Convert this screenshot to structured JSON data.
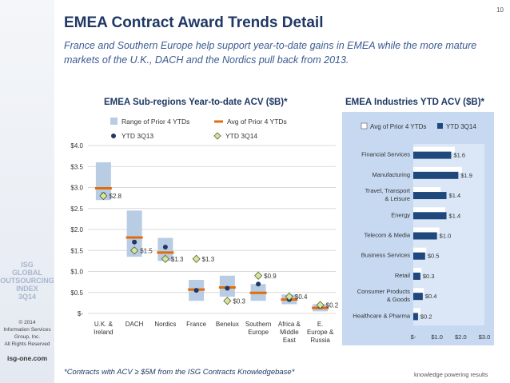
{
  "page": {
    "number": "10",
    "title": "EMEA Contract Award Trends Detail",
    "subtitle": "France and Southern Europe help support year-to-date gains in EMEA while the more mature markets of the U.K., DACH and the Nordics pull back from 2013.",
    "footnote": "*Contracts with ACV ≥ $5M from the ISG Contracts Knowledgebase*",
    "tagline": "knowledge powering results",
    "colors": {
      "title": "#1f3864",
      "subtitle": "#3b5a92"
    }
  },
  "sidebar": {
    "logo_lines": [
      "ISG",
      "GLOBAL",
      "OUTSOURCING",
      "INDEX",
      "3Q14"
    ],
    "copyright_lines": [
      "© 2014",
      "Information Services",
      "Group, Inc.",
      "All Rights Reserved"
    ],
    "website": "isg-one.com"
  },
  "chart_data": [
    {
      "type": "box-range",
      "title": "EMEA Sub-regions Year-to-date ACV ($B)*",
      "categories": [
        "U.K. & Ireland",
        "DACH",
        "Nordics",
        "France",
        "Benelux",
        "Southern Europe",
        "Africa & Middle East",
        "E. Europe & Russia"
      ],
      "y_tick_labels": [
        "$-",
        "$0.5",
        "$1.0",
        "$1.5",
        "$2.0",
        "$2.5",
        "$3.0",
        "$3.5",
        "$4.0"
      ],
      "ylim": [
        0,
        4.0
      ],
      "grid": true,
      "legend": [
        "Range of Prior 4 YTDs",
        "Avg of Prior 4 YTDs",
        "YTD 3Q13",
        "YTD 3Q14"
      ],
      "series": [
        {
          "name": "Range of Prior 4 YTDs",
          "values": [
            [
              2.7,
              3.6
            ],
            [
              1.35,
              2.45
            ],
            [
              1.25,
              1.8
            ],
            [
              0.3,
              0.8
            ],
            [
              0.4,
              0.9
            ],
            [
              0.3,
              0.7
            ],
            [
              0.22,
              0.45
            ],
            [
              0.05,
              0.22
            ]
          ]
        },
        {
          "name": "Avg of Prior 4 YTDs",
          "values": [
            2.98,
            1.81,
            1.45,
            0.57,
            0.62,
            0.49,
            0.33,
            0.13
          ]
        },
        {
          "name": "YTD 3Q13",
          "values": [
            2.83,
            1.7,
            1.58,
            0.55,
            0.6,
            0.7,
            0.33,
            0.17
          ]
        },
        {
          "name": "YTD 3Q14",
          "values": [
            2.8,
            1.5,
            1.3,
            1.3,
            0.3,
            0.9,
            0.4,
            0.2
          ]
        }
      ],
      "data_labels": [
        "$2.8",
        "$1.5",
        "$1.3",
        "$1.3",
        "$0.3",
        "$0.9",
        "$0.4",
        "$0.2"
      ],
      "colors": {
        "range": "#b8cce4",
        "avg": "#e36c09",
        "ytd13": "#1f3864",
        "ytd14": "#d7e4a2",
        "ytd14_stroke": "#4f6228"
      }
    },
    {
      "type": "bar",
      "orientation": "horizontal",
      "title": "EMEA Industries YTD ACV ($B)*",
      "categories": [
        "Financial Services",
        "Manufacturing",
        "Travel, Transport & Leisure",
        "Energy",
        "Telecom & Media",
        "Business Services",
        "Retail",
        "Consumer Products & Goods",
        "Healthcare & Pharma"
      ],
      "x_tick_labels": [
        "$-",
        "$1.0",
        "$2.0",
        "$3.0"
      ],
      "xlim": [
        0,
        3.0
      ],
      "legend": [
        "Avg of Prior 4 YTDs",
        "YTD 3Q14"
      ],
      "series": [
        {
          "name": "Avg of Prior 4 YTDs",
          "values": [
            1.75,
            2.05,
            1.15,
            1.35,
            1.1,
            0.55,
            0.35,
            0.45,
            0.3
          ]
        },
        {
          "name": "YTD 3Q14",
          "values": [
            1.6,
            1.9,
            1.4,
            1.4,
            1.0,
            0.5,
            0.3,
            0.4,
            0.2
          ]
        }
      ],
      "data_labels": [
        "$1.6",
        "$1.9",
        "$1.4",
        "$1.4",
        "$1.0",
        "$0.5",
        "$0.3",
        "$0.4",
        "$0.2"
      ],
      "colors": {
        "panel": "#c6d9f1",
        "avg": "#ffffff",
        "ytd": "#1f497d"
      }
    }
  ]
}
